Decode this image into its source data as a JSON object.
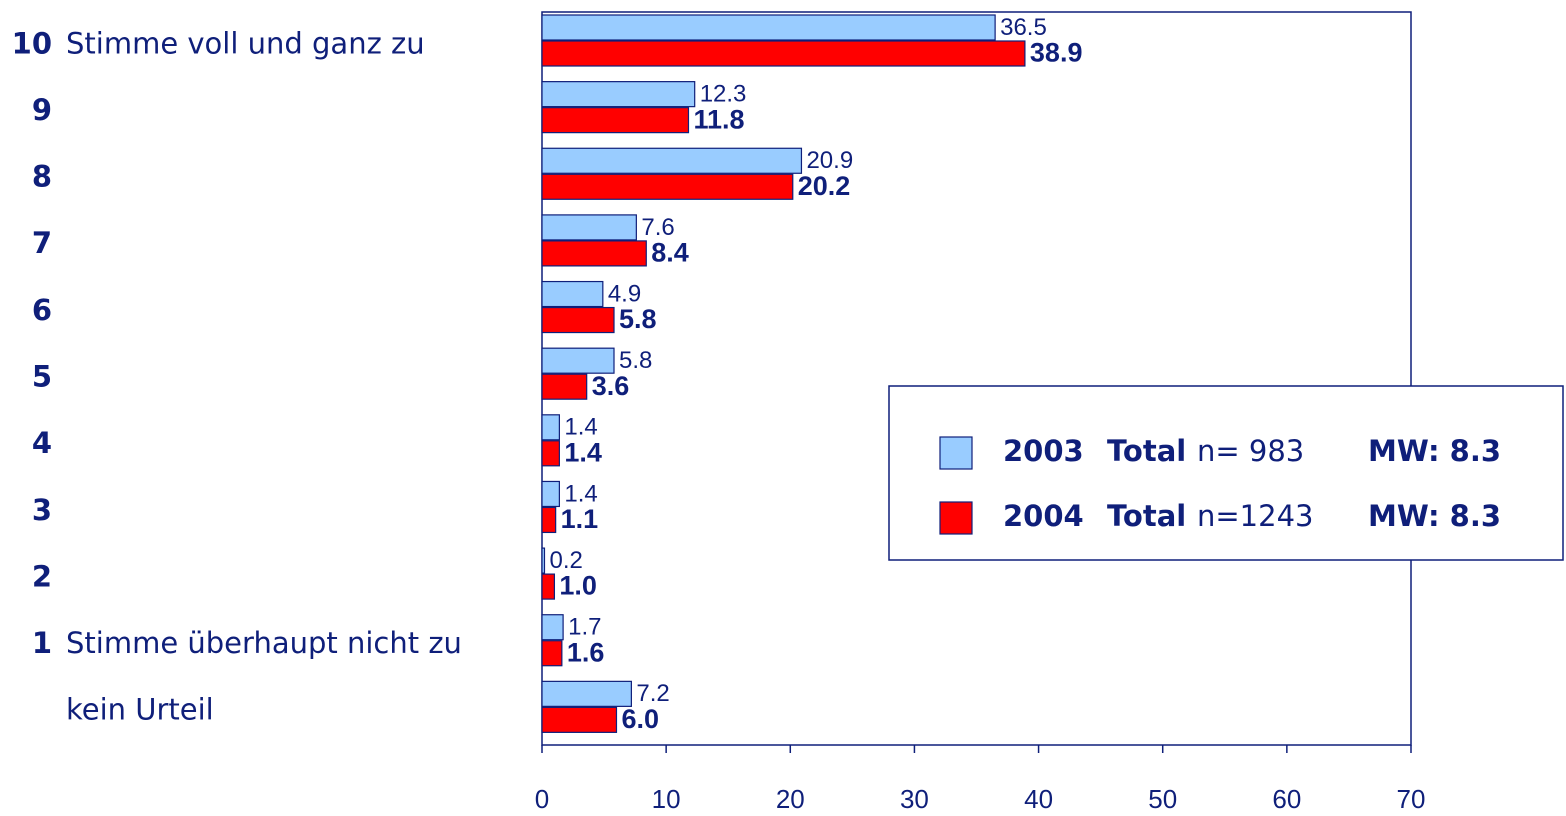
{
  "chart_data": {
    "type": "hbar",
    "categories": [
      "10",
      "9",
      "8",
      "7",
      "6",
      "5",
      "4",
      "3",
      "2",
      "1",
      "kein Urteil"
    ],
    "scale_labels": {
      "top": "Stimme voll und ganz zu",
      "bottom": "Stimme überhaupt nicht zu"
    },
    "series": [
      {
        "name": "2003",
        "group": "Total",
        "n_label": "n= 983",
        "mean_label": "MW: 8.3",
        "color": "#99ccff",
        "values": [
          36.5,
          12.3,
          20.9,
          7.6,
          4.9,
          5.8,
          1.4,
          1.4,
          0.2,
          1.7,
          7.2
        ],
        "value_labels": [
          "36.5",
          "12.3",
          "20.9",
          "7.6",
          "4.9",
          "5.8",
          "1.4",
          "1.4",
          "0.2",
          "1.7",
          "7.2"
        ]
      },
      {
        "name": "2004",
        "group": "Total",
        "n_label": "n=1243",
        "mean_label": "MW: 8.3",
        "color": "#ff0000",
        "values": [
          38.9,
          11.8,
          20.2,
          8.4,
          5.8,
          3.6,
          1.4,
          1.1,
          1.0,
          1.6,
          6.0
        ],
        "value_labels": [
          "38.9",
          "11.8",
          "20.2",
          "8.4",
          "5.8",
          "3.6",
          "1.4",
          "1.1",
          "1.0",
          "1.6",
          "6.0"
        ]
      }
    ],
    "xlim": [
      0,
      70
    ],
    "xticks": [
      0,
      10,
      20,
      30,
      40,
      50,
      60,
      70
    ],
    "legend": "right"
  }
}
